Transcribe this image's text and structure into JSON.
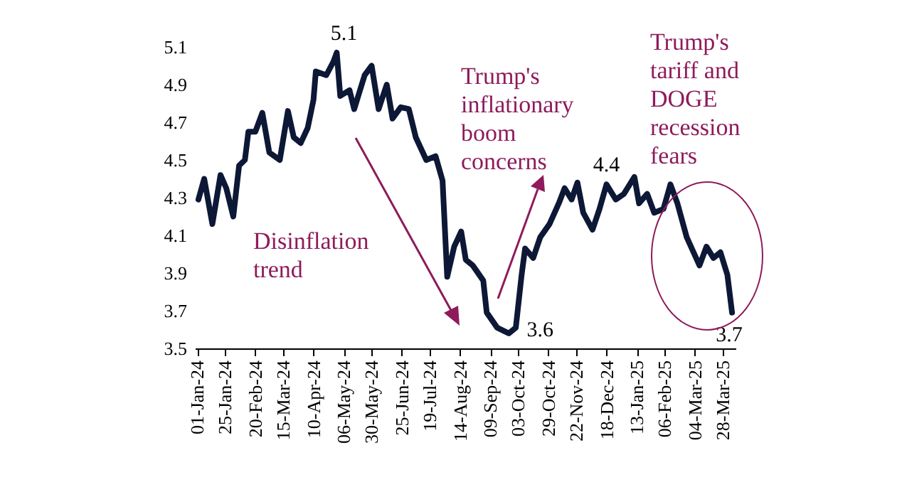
{
  "chart_data": {
    "type": "line",
    "x": [
      "2024-01-02",
      "2024-01-07",
      "2024-01-14",
      "2024-01-21",
      "2024-01-26",
      "2024-02-01",
      "2024-02-06",
      "2024-02-11",
      "2024-02-14",
      "2024-02-20",
      "2024-02-26",
      "2024-03-03",
      "2024-03-12",
      "2024-03-19",
      "2024-03-24",
      "2024-03-30",
      "2024-04-05",
      "2024-04-10",
      "2024-04-12",
      "2024-04-21",
      "2024-04-27",
      "2024-04-30",
      "2024-05-03",
      "2024-05-11",
      "2024-05-15",
      "2024-05-24",
      "2024-05-30",
      "2024-06-05",
      "2024-06-12",
      "2024-06-17",
      "2024-06-24",
      "2024-07-01",
      "2024-07-07",
      "2024-07-16",
      "2024-07-24",
      "2024-07-30",
      "2024-08-03",
      "2024-08-09",
      "2024-08-15",
      "2024-08-19",
      "2024-08-25",
      "2024-09-03",
      "2024-09-06",
      "2024-09-15",
      "2024-09-25",
      "2024-10-01",
      "2024-10-06",
      "2024-10-09",
      "2024-10-16",
      "2024-10-22",
      "2024-10-30",
      "2024-11-07",
      "2024-11-12",
      "2024-11-18",
      "2024-11-23",
      "2024-11-28",
      "2024-12-06",
      "2024-12-12",
      "2024-12-18",
      "2024-12-26",
      "2025-01-02",
      "2025-01-11",
      "2025-01-15",
      "2025-01-22",
      "2025-01-28",
      "2025-02-05",
      "2025-02-11",
      "2025-02-17",
      "2025-02-25",
      "2025-03-08",
      "2025-03-14",
      "2025-03-20",
      "2025-03-26",
      "2025-04-01",
      "2025-04-05"
    ],
    "series": [
      {
        "color": "#0d1836",
        "values": [
          4.29,
          4.4,
          4.16,
          4.42,
          4.35,
          4.2,
          4.47,
          4.5,
          4.65,
          4.65,
          4.75,
          4.54,
          4.5,
          4.76,
          4.62,
          4.59,
          4.67,
          4.82,
          4.97,
          4.95,
          5.02,
          5.07,
          4.84,
          4.87,
          4.77,
          4.95,
          5.0,
          4.77,
          4.9,
          4.72,
          4.78,
          4.77,
          4.62,
          4.5,
          4.52,
          4.39,
          3.88,
          4.04,
          4.12,
          3.97,
          3.94,
          3.86,
          3.69,
          3.61,
          3.58,
          3.61,
          3.89,
          4.03,
          3.98,
          4.09,
          4.16,
          4.27,
          4.35,
          4.29,
          4.38,
          4.22,
          4.13,
          4.24,
          4.37,
          4.29,
          4.32,
          4.41,
          4.27,
          4.32,
          4.22,
          4.24,
          4.37,
          4.27,
          4.09,
          3.94,
          4.04,
          3.98,
          4.01,
          3.89,
          3.69
        ]
      }
    ],
    "xlim": [
      "2023-12-30",
      "2025-04-08"
    ],
    "xticks": [
      {
        "value": "2024-01-01",
        "label": "01-Jan-24"
      },
      {
        "value": "2024-01-25",
        "label": "25-Jan-24"
      },
      {
        "value": "2024-02-20",
        "label": "20-Feb-24"
      },
      {
        "value": "2024-03-15",
        "label": "15-Mar-24"
      },
      {
        "value": "2024-04-10",
        "label": "10-Apr-24"
      },
      {
        "value": "2024-05-06",
        "label": "06-May-24"
      },
      {
        "value": "2024-05-30",
        "label": "30-May-24"
      },
      {
        "value": "2024-06-25",
        "label": "25-Jun-24"
      },
      {
        "value": "2024-07-19",
        "label": "19-Jul-24"
      },
      {
        "value": "2024-08-14",
        "label": "14-Aug-24"
      },
      {
        "value": "2024-09-09",
        "label": "09-Sep-24"
      },
      {
        "value": "2024-10-03",
        "label": "03-Oct-24"
      },
      {
        "value": "2024-10-29",
        "label": "29-Oct-24"
      },
      {
        "value": "2024-11-22",
        "label": "22-Nov-24"
      },
      {
        "value": "2024-12-18",
        "label": "18-Dec-24"
      },
      {
        "value": "2025-01-13",
        "label": "13-Jan-25"
      },
      {
        "value": "2025-02-06",
        "label": "06-Feb-25"
      },
      {
        "value": "2025-03-04",
        "label": "04-Mar-25"
      },
      {
        "value": "2025-03-28",
        "label": "28-Mar-25"
      }
    ],
    "ylim": [
      3.5,
      5.1
    ],
    "yticks": [
      3.5,
      3.7,
      3.9,
      4.1,
      4.3,
      4.5,
      4.7,
      4.9,
      5.1
    ],
    "line_style": "solid",
    "annotations": [
      {
        "text": "5.1",
        "x": "2024-04-30",
        "y": 5.07
      },
      {
        "text": "3.6",
        "x": "2024-09-25",
        "y": 3.58
      },
      {
        "text": "4.4",
        "x": "2024-12-18",
        "y": 4.37
      },
      {
        "text": "3.7",
        "x": "2025-04-05",
        "y": 3.69
      },
      "Disinflation\ntrend",
      "Trump's\ninflationary\nboom\nconcerns",
      "Trump's\ntariff and\nDOGE\nrecession\nfears"
    ]
  }
}
